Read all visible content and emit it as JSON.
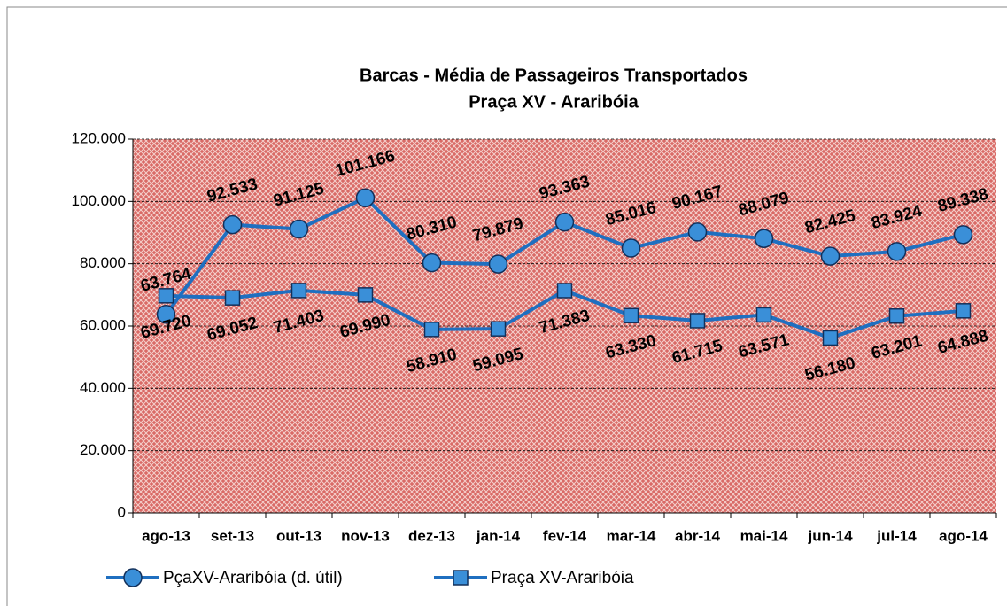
{
  "chart_data": {
    "type": "line",
    "title": "Barcas - Média de Passageiros Transportados",
    "subtitle": "Praça XV - Araribóia",
    "categories": [
      "ago-13",
      "set-13",
      "out-13",
      "nov-13",
      "dez-13",
      "jan-14",
      "fev-14",
      "mar-14",
      "abr-14",
      "mai-14",
      "jun-14",
      "jul-14",
      "ago-14"
    ],
    "series": [
      {
        "name": "PçaXV-Araribóia (d. útil)",
        "color": "#1f6fc0",
        "marker": "circle",
        "values": [
          63764,
          92533,
          91125,
          101166,
          80310,
          79879,
          93363,
          85016,
          90167,
          88079,
          82425,
          83924,
          89338
        ],
        "value_labels": [
          "63.764",
          "92.533",
          "91.125",
          "101.166",
          "80.310",
          "79.879",
          "93.363",
          "85.016",
          "90.167",
          "88.079",
          "82.425",
          "83.924",
          "89.338"
        ]
      },
      {
        "name": "Praça XV-Araribóia",
        "color": "#1f6fc0",
        "marker": "square",
        "values": [
          69720,
          69052,
          71403,
          69990,
          58910,
          59095,
          71383,
          63330,
          61715,
          63571,
          56180,
          63201,
          64888
        ],
        "value_labels": [
          "69.720",
          "69.052",
          "71.403",
          "69.990",
          "58.910",
          "59.095",
          "71.383",
          "63.330",
          "61.715",
          "63.571",
          "56.180",
          "63.201",
          "64.888"
        ]
      }
    ],
    "ylim": [
      0,
      120000
    ],
    "yticks": [
      0,
      {
        "value": 20000,
        "label": "20.000"
      },
      {
        "value": 40000,
        "label": "40.000"
      },
      {
        "value": 60000,
        "label": "60.000"
      },
      {
        "value": 80000,
        "label": "80.000"
      },
      {
        "value": 100000,
        "label": "100.000"
      },
      {
        "value": 120000,
        "label": "120.000"
      }
    ],
    "grid": true,
    "legend": "bottom"
  }
}
